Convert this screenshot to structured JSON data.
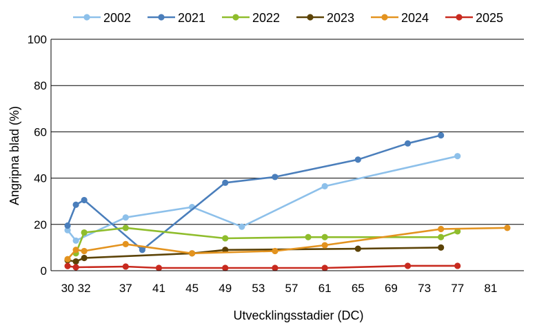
{
  "chart_data": {
    "type": "line",
    "title": "",
    "xlabel": "Utvecklingsstadier (DC)",
    "ylabel": "Angripna blad (%)",
    "ylim": [
      0,
      100
    ],
    "yticks": [
      0,
      20,
      40,
      60,
      80,
      100
    ],
    "xticks": [
      30,
      32,
      37,
      41,
      45,
      49,
      53,
      57,
      61,
      65,
      69,
      73,
      77,
      81
    ],
    "grid": "horizontal",
    "legend_position": "top",
    "series": [
      {
        "name": "2002",
        "color": "#8dc0ea",
        "points": [
          [
            30,
            17.5
          ],
          [
            31,
            13
          ],
          [
            37,
            23
          ],
          [
            45,
            27.5
          ],
          [
            51,
            19
          ],
          [
            61,
            36.5
          ],
          [
            77,
            49.5
          ]
        ]
      },
      {
        "name": "2021",
        "color": "#4a7ebb",
        "points": [
          [
            30,
            19.5
          ],
          [
            31,
            28.5
          ],
          [
            32,
            30.5
          ],
          [
            39,
            9
          ],
          [
            49,
            38
          ],
          [
            55,
            40.5
          ],
          [
            65,
            48
          ],
          [
            71,
            55
          ],
          [
            75,
            58.5
          ]
        ]
      },
      {
        "name": "2022",
        "color": "#8fbd2c",
        "points": [
          [
            31,
            7.5
          ],
          [
            32,
            16.5
          ],
          [
            37,
            18.5
          ],
          [
            49,
            14
          ],
          [
            59,
            14.5
          ],
          [
            61,
            14.5
          ],
          [
            75,
            14.5
          ],
          [
            77,
            17
          ]
        ]
      },
      {
        "name": "2023",
        "color": "#5c4307",
        "points": [
          [
            30,
            4.5
          ],
          [
            31,
            4
          ],
          [
            32,
            5.5
          ],
          [
            45,
            7.5
          ],
          [
            49,
            9
          ],
          [
            65,
            9.5
          ],
          [
            75,
            10
          ]
        ]
      },
      {
        "name": "2024",
        "color": "#e3931f",
        "points": [
          [
            30,
            5
          ],
          [
            31,
            9
          ],
          [
            32,
            8.5
          ],
          [
            37,
            11.5
          ],
          [
            45,
            7.5
          ],
          [
            55,
            8.5
          ],
          [
            61,
            11
          ],
          [
            75,
            18
          ],
          [
            83,
            18.5
          ]
        ]
      },
      {
        "name": "2025",
        "color": "#c82a1f",
        "points": [
          [
            30,
            2
          ],
          [
            31,
            1.5
          ],
          [
            37,
            1.8
          ],
          [
            41,
            1.2
          ],
          [
            49,
            1.2
          ],
          [
            55,
            1.2
          ],
          [
            61,
            1.2
          ],
          [
            71,
            2.1
          ],
          [
            77,
            2.1
          ]
        ]
      }
    ]
  }
}
